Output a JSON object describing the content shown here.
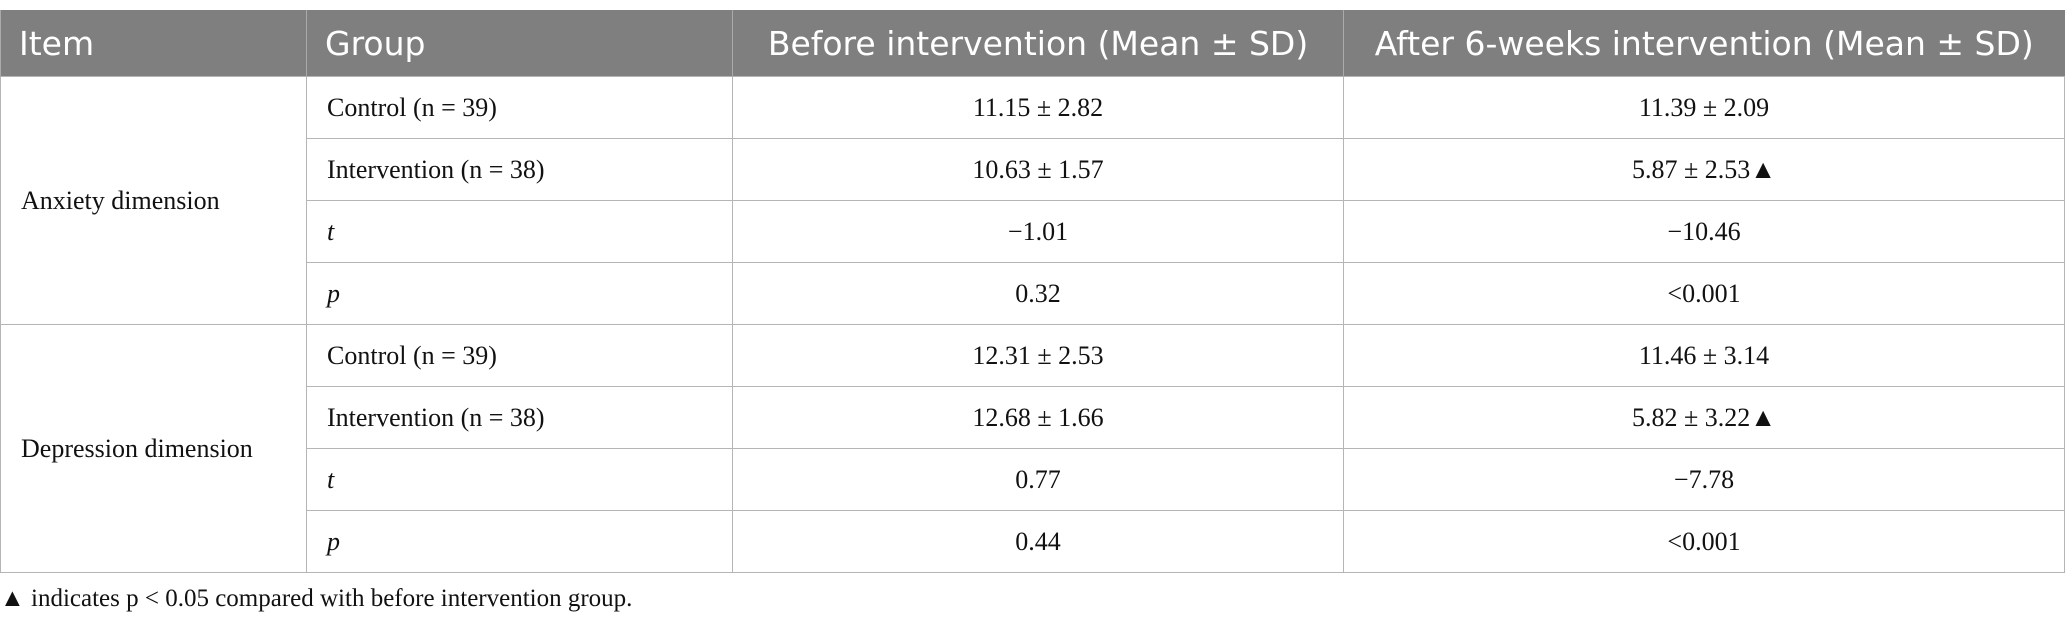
{
  "table": {
    "header": [
      "Item",
      "Group",
      "Before intervention (Mean ± SD)",
      "After 6-weeks intervention (Mean ± SD)"
    ],
    "sections": [
      {
        "item": "Anxiety dimension",
        "rows": [
          [
            "Control (n = 39)",
            "11.15 ± 2.82",
            "11.39 ± 2.09"
          ],
          [
            "Intervention (n = 38)",
            "10.63 ± 1.57",
            "5.87 ± 2.53▲"
          ],
          [
            "t",
            "−1.01",
            "−10.46"
          ],
          [
            "p",
            "0.32",
            "<0.001"
          ]
        ]
      },
      {
        "item": "Depression dimension",
        "rows": [
          [
            "Control (n = 39)",
            "12.31 ± 2.53",
            "11.46 ± 3.14"
          ],
          [
            "Intervention (n = 38)",
            "12.68 ± 1.66",
            "5.82 ± 3.22▲"
          ],
          [
            "t",
            "0.77",
            "−7.78"
          ],
          [
            "p",
            "0.44",
            "<0.001"
          ]
        ]
      }
    ],
    "footnote": "▲ indicates p < 0.05 compared with before intervention group."
  }
}
